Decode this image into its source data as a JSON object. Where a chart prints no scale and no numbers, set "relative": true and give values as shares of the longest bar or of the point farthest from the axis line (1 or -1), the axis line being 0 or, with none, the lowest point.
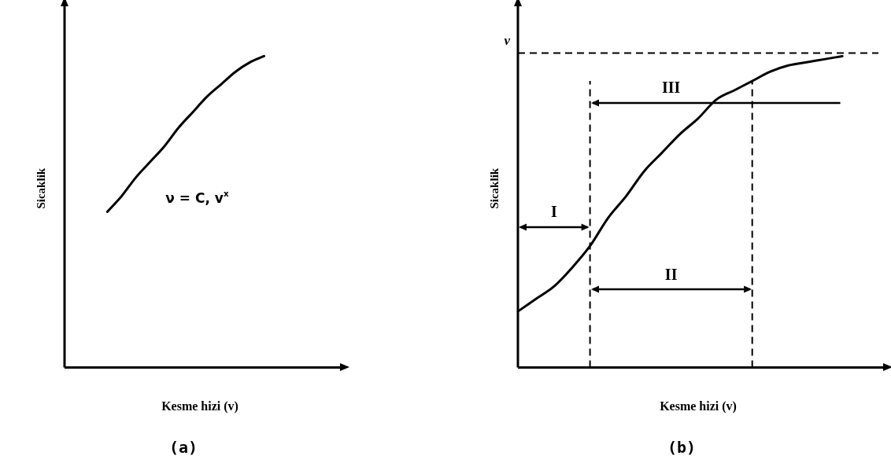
{
  "chart_data": [
    {
      "type": "line",
      "title": "(a)",
      "xlabel": "Kesme hizi (v)",
      "ylabel": "Sicaklik",
      "relative": true,
      "grid": false,
      "legend": false,
      "marker": "none",
      "line_style": "solid",
      "categories": [
        null,
        null,
        null,
        null,
        null,
        null,
        null,
        null,
        null,
        null,
        null,
        null,
        null,
        null,
        null,
        null,
        null,
        null,
        null,
        null
      ],
      "series": [
        {
          "color": "#000000",
          "values": [
            null,
            null,
            null,
            0.5,
            0.55,
            0.61,
            0.66,
            0.71,
            0.77,
            0.82,
            0.87,
            0.91,
            0.95,
            0.98,
            1,
            null,
            null,
            null,
            null,
            null
          ]
        }
      ],
      "annotations": [
        "ν = C, v$^{x}$"
      ]
    },
    {
      "type": "line",
      "title": "(b)",
      "xlabel": "Kesme hizi (v)",
      "ylabel": "Sicaklik",
      "relative": true,
      "grid": false,
      "legend": false,
      "marker": "none",
      "line_style": "solid",
      "categories": [
        null,
        null,
        null,
        null,
        null,
        null,
        null,
        null,
        null,
        null,
        null,
        null,
        null,
        null,
        null,
        null,
        null,
        null,
        null,
        null,
        null
      ],
      "series": [
        {
          "color": "#000000",
          "values": [
            0.18,
            0.22,
            0.26,
            0.32,
            0.39,
            0.48,
            0.55,
            0.63,
            0.69,
            0.75,
            0.8,
            0.86,
            0.89,
            0.92,
            0.95,
            0.97,
            0.98,
            0.99,
            1,
            null,
            null
          ]
        }
      ],
      "ref_lines": [
        {
          "axis": "y",
          "value": 1.01,
          "label": "ν",
          "line_style": "dashed"
        }
      ],
      "annotations": [
        "I",
        "II",
        "III"
      ]
    }
  ]
}
